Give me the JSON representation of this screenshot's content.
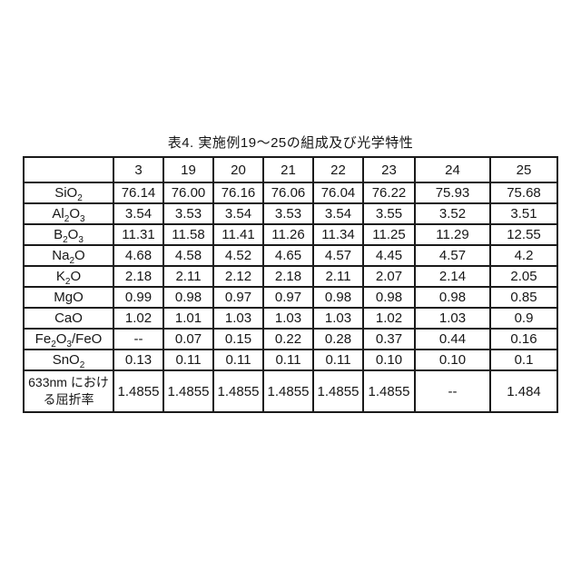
{
  "title": "表4. 実施例19～25の組成及び光学特性",
  "table": {
    "corner": "",
    "columns": [
      "3",
      "19",
      "20",
      "21",
      "22",
      "23",
      "24",
      "25"
    ],
    "rows": [
      {
        "name": "SiO2",
        "label_parts": [
          {
            "text": "SiO"
          },
          {
            "text": "2",
            "sub": true
          }
        ],
        "values": [
          "76.14",
          "76.00",
          "76.16",
          "76.06",
          "76.04",
          "76.22",
          "75.93",
          "75.68"
        ]
      },
      {
        "name": "Al2O3",
        "label_parts": [
          {
            "text": "Al"
          },
          {
            "text": "2",
            "sub": true
          },
          {
            "text": "O"
          },
          {
            "text": "3",
            "sub": true
          }
        ],
        "values": [
          "3.54",
          "3.53",
          "3.54",
          "3.53",
          "3.54",
          "3.55",
          "3.52",
          "3.51"
        ]
      },
      {
        "name": "B2O3",
        "label_parts": [
          {
            "text": "B"
          },
          {
            "text": "2",
            "sub": true
          },
          {
            "text": "O"
          },
          {
            "text": "3",
            "sub": true
          }
        ],
        "values": [
          "11.31",
          "11.58",
          "11.41",
          "11.26",
          "11.34",
          "11.25",
          "11.29",
          "12.55"
        ]
      },
      {
        "name": "Na2O",
        "label_parts": [
          {
            "text": "Na"
          },
          {
            "text": "2",
            "sub": true
          },
          {
            "text": "O"
          }
        ],
        "values": [
          "4.68",
          "4.58",
          "4.52",
          "4.65",
          "4.57",
          "4.45",
          "4.57",
          "4.2"
        ]
      },
      {
        "name": "K2O",
        "label_parts": [
          {
            "text": "K"
          },
          {
            "text": "2",
            "sub": true
          },
          {
            "text": "O"
          }
        ],
        "values": [
          "2.18",
          "2.11",
          "2.12",
          "2.18",
          "2.11",
          "2.07",
          "2.14",
          "2.05"
        ]
      },
      {
        "name": "MgO",
        "label_parts": [
          {
            "text": "MgO"
          }
        ],
        "values": [
          "0.99",
          "0.98",
          "0.97",
          "0.97",
          "0.98",
          "0.98",
          "0.98",
          "0.85"
        ]
      },
      {
        "name": "CaO",
        "label_parts": [
          {
            "text": "CaO"
          }
        ],
        "values": [
          "1.02",
          "1.01",
          "1.03",
          "1.03",
          "1.03",
          "1.02",
          "1.03",
          "0.9"
        ]
      },
      {
        "name": "Fe2O3-FeO",
        "label_parts": [
          {
            "text": "Fe"
          },
          {
            "text": "2",
            "sub": true
          },
          {
            "text": "O"
          },
          {
            "text": "3",
            "sub": true
          },
          {
            "text": "/FeO"
          }
        ],
        "values": [
          "--",
          "0.07",
          "0.15",
          "0.22",
          "0.28",
          "0.37",
          "0.44",
          "0.16"
        ]
      },
      {
        "name": "SnO2",
        "label_parts": [
          {
            "text": "SnO"
          },
          {
            "text": "2",
            "sub": true
          }
        ],
        "values": [
          "0.13",
          "0.11",
          "0.11",
          "0.11",
          "0.11",
          "0.10",
          "0.10",
          "0.1"
        ]
      },
      {
        "name": "refractive-index-633nm",
        "tall": true,
        "label_parts": [
          {
            "text": "633nm における屈折率"
          }
        ],
        "values": [
          "1.4855",
          "1.4855",
          "1.4855",
          "1.4855",
          "1.4855",
          "1.4855",
          "--",
          "1.484"
        ]
      }
    ]
  }
}
